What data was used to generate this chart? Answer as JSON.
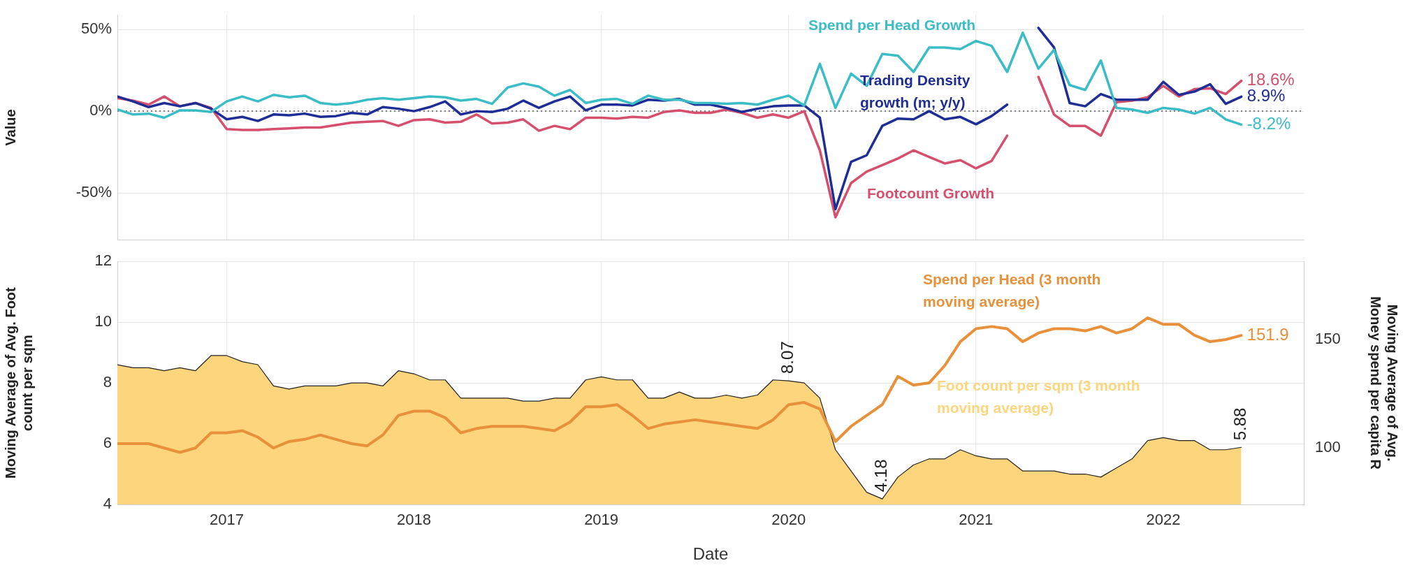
{
  "chart_data": [
    {
      "type": "line",
      "ylabel": "Value",
      "ylim": [
        -79,
        59
      ],
      "yticks": [
        {
          "value": 50,
          "label": "50%"
        },
        {
          "value": 0,
          "label": "0%"
        },
        {
          "value": -50,
          "label": "-50%"
        }
      ],
      "xlim": [
        "2016-06",
        "2022-10"
      ],
      "xticks": [
        "2017",
        "2018",
        "2019",
        "2020",
        "2021",
        "2022"
      ],
      "tick_labels": "y",
      "grid": true,
      "legend": false,
      "marker": "none",
      "line_style": "solid",
      "ref_lines": [
        {
          "axis": "y",
          "value": 0,
          "line_style": "dotted",
          "color": "#555555"
        }
      ],
      "x": [
        "2016-06",
        "2016-07",
        "2016-08",
        "2016-09",
        "2016-10",
        "2016-11",
        "2016-12",
        "2017-01",
        "2017-02",
        "2017-03",
        "2017-04",
        "2017-05",
        "2017-06",
        "2017-07",
        "2017-08",
        "2017-09",
        "2017-10",
        "2017-11",
        "2017-12",
        "2018-01",
        "2018-02",
        "2018-03",
        "2018-04",
        "2018-05",
        "2018-06",
        "2018-07",
        "2018-08",
        "2018-09",
        "2018-10",
        "2018-11",
        "2018-12",
        "2019-01",
        "2019-02",
        "2019-03",
        "2019-04",
        "2019-05",
        "2019-06",
        "2019-07",
        "2019-08",
        "2019-09",
        "2019-10",
        "2019-11",
        "2019-12",
        "2020-01",
        "2020-02",
        "2020-03",
        "2020-04",
        "2020-05",
        "2020-06",
        "2020-07",
        "2020-08",
        "2020-09",
        "2020-10",
        "2020-11",
        "2020-12",
        "2021-01",
        "2021-02",
        "2021-03",
        "2021-04",
        "2021-05",
        "2021-06",
        "2021-07",
        "2021-08",
        "2021-09",
        "2021-10",
        "2021-11",
        "2021-12",
        "2022-01",
        "2022-02",
        "2022-03",
        "2022-04",
        "2022-05",
        "2022-06"
      ],
      "series": [
        {
          "name": "Spend per Head Growth",
          "color": "#3bbdc8",
          "values": [
            1,
            -2,
            -1.5,
            -4,
            0.5,
            0.5,
            -0.5,
            6,
            9,
            6,
            10,
            8.5,
            9.5,
            5,
            4,
            5,
            7,
            8,
            7,
            8,
            9,
            8.5,
            6.5,
            7.5,
            4.5,
            14.5,
            17,
            15,
            9.5,
            13,
            5,
            7,
            7.5,
            4.5,
            9.5,
            7,
            7,
            5,
            5,
            4.5,
            5,
            4,
            7,
            9.5,
            3.5,
            29,
            2,
            23,
            15.5,
            35,
            34,
            24,
            39,
            39,
            38,
            43,
            40,
            24,
            48,
            26,
            37.5,
            16,
            13,
            31,
            2,
            1,
            -1,
            2,
            1,
            -1.5,
            2,
            -5,
            -8.2
          ],
          "value_labels": [
            null,
            null,
            null,
            null,
            null,
            null,
            null,
            null,
            null,
            null,
            null,
            null,
            null,
            null,
            null,
            null,
            null,
            null,
            null,
            null,
            null,
            null,
            null,
            null,
            null,
            null,
            null,
            null,
            null,
            null,
            null,
            null,
            null,
            null,
            null,
            null,
            null,
            null,
            null,
            null,
            null,
            null,
            null,
            null,
            null,
            null,
            null,
            null,
            null,
            null,
            null,
            null,
            null,
            null,
            null,
            null,
            null,
            null,
            null,
            null,
            null,
            null,
            null,
            null,
            null,
            null,
            null,
            null,
            null,
            null,
            null,
            null,
            "-8.2%"
          ]
        },
        {
          "name": "Trading Density growth (m; y/y)",
          "color": "#1f2d96",
          "values": [
            9,
            6,
            2.5,
            5,
            3,
            5,
            1.5,
            -5,
            -3.5,
            -6,
            -2,
            -2.5,
            -1.5,
            -3.5,
            -3,
            -1,
            -2,
            2.5,
            1.5,
            0,
            2.5,
            6,
            -2,
            0,
            -0.5,
            1.5,
            6.5,
            2,
            6,
            9,
            0.5,
            4,
            4,
            3.5,
            7,
            6.5,
            7.5,
            4,
            4,
            2,
            -0.5,
            1.5,
            3,
            3.5,
            3.5,
            -4,
            -60,
            -31,
            -27,
            -9,
            -4.5,
            -5,
            0,
            -5,
            -3.5,
            -8,
            -3,
            4,
            null,
            51,
            39,
            5,
            3,
            10.5,
            7,
            7,
            7,
            18,
            10,
            12,
            16.5,
            4.5,
            8.9
          ],
          "value_labels": [
            null,
            null,
            null,
            null,
            null,
            null,
            null,
            null,
            null,
            null,
            null,
            null,
            null,
            null,
            null,
            null,
            null,
            null,
            null,
            null,
            null,
            null,
            null,
            null,
            null,
            null,
            null,
            null,
            null,
            null,
            null,
            null,
            null,
            null,
            null,
            null,
            null,
            null,
            null,
            null,
            null,
            null,
            null,
            null,
            null,
            null,
            null,
            null,
            null,
            null,
            null,
            null,
            null,
            null,
            null,
            null,
            null,
            null,
            null,
            null,
            null,
            null,
            null,
            null,
            null,
            null,
            null,
            null,
            null,
            null,
            null,
            null,
            "8.9%"
          ]
        },
        {
          "name": "Footcount Growth",
          "color": "#d6506e",
          "values": [
            8,
            6.5,
            4,
            9,
            3,
            5,
            2,
            -11,
            -11.5,
            -11.5,
            -11,
            -10.5,
            -10,
            -10,
            -8.5,
            -7,
            -6.5,
            -6,
            -9,
            -5.5,
            -5,
            -7,
            -6.5,
            -2,
            -7.5,
            -7,
            -5,
            -12,
            -9,
            -11,
            -4,
            -4,
            -4.5,
            -3.5,
            -4,
            -0.5,
            0.5,
            -1,
            -1,
            1,
            -1,
            -4,
            -2,
            -4,
            0,
            -24,
            -65,
            -44,
            -37,
            -33,
            -29,
            -24,
            -28,
            -32,
            -30,
            -35,
            -30.5,
            -15,
            null,
            21,
            -2,
            -9,
            -9,
            -15,
            5.5,
            6.5,
            8.5,
            15.5,
            9,
            13.5,
            14,
            10.5,
            18.6
          ],
          "value_labels": [
            null,
            null,
            null,
            null,
            null,
            null,
            null,
            null,
            null,
            null,
            null,
            null,
            null,
            null,
            null,
            null,
            null,
            null,
            null,
            null,
            null,
            null,
            null,
            null,
            null,
            null,
            null,
            null,
            null,
            null,
            null,
            null,
            null,
            null,
            null,
            null,
            null,
            null,
            null,
            null,
            null,
            null,
            null,
            null,
            null,
            null,
            null,
            null,
            null,
            null,
            null,
            null,
            null,
            null,
            null,
            null,
            null,
            null,
            null,
            null,
            null,
            null,
            null,
            null,
            null,
            null,
            null,
            null,
            null,
            null,
            null,
            null,
            "18.6%"
          ]
        }
      ]
    },
    {
      "type": "area",
      "xlabel": "Date",
      "ylabel": "Moving Average of Avg. Foot count per sqm",
      "y2label": "Moving Average of Avg. Money spend per capita R",
      "ylim": [
        4,
        12
      ],
      "yticks": [
        4,
        6,
        8,
        10,
        12
      ],
      "y2lim": [
        74,
        186
      ],
      "y2ticks": [
        100,
        150
      ],
      "xlim": [
        "2016-06",
        "2022-10"
      ],
      "xticks": [
        "2017",
        "2018",
        "2019",
        "2020",
        "2021",
        "2022"
      ],
      "grid": true,
      "legend": false,
      "marker": "none",
      "x": [
        "2016-06",
        "2016-07",
        "2016-08",
        "2016-09",
        "2016-10",
        "2016-11",
        "2016-12",
        "2017-01",
        "2017-02",
        "2017-03",
        "2017-04",
        "2017-05",
        "2017-06",
        "2017-07",
        "2017-08",
        "2017-09",
        "2017-10",
        "2017-11",
        "2017-12",
        "2018-01",
        "2018-02",
        "2018-03",
        "2018-04",
        "2018-05",
        "2018-06",
        "2018-07",
        "2018-08",
        "2018-09",
        "2018-10",
        "2018-11",
        "2018-12",
        "2019-01",
        "2019-02",
        "2019-03",
        "2019-04",
        "2019-05",
        "2019-06",
        "2019-07",
        "2019-08",
        "2019-09",
        "2019-10",
        "2019-11",
        "2019-12",
        "2020-01",
        "2020-02",
        "2020-03",
        "2020-04",
        "2020-05",
        "2020-06",
        "2020-07",
        "2020-08",
        "2020-09",
        "2020-10",
        "2020-11",
        "2020-12",
        "2021-01",
        "2021-02",
        "2021-03",
        "2021-04",
        "2021-05",
        "2021-06",
        "2021-07",
        "2021-08",
        "2021-09",
        "2021-10",
        "2021-11",
        "2021-12",
        "2022-01",
        "2022-02",
        "2022-03",
        "2022-04",
        "2022-05",
        "2022-06"
      ],
      "series": [
        {
          "name": "Foot count per sqm (3 month moving average)",
          "color": "#fcd57c",
          "values": [
            8.6,
            8.5,
            8.5,
            8.4,
            8.5,
            8.4,
            8.9,
            8.9,
            8.7,
            8.6,
            7.9,
            7.8,
            7.9,
            7.9,
            7.9,
            8.0,
            8.0,
            7.9,
            8.4,
            8.3,
            8.1,
            8.1,
            7.5,
            7.5,
            7.5,
            7.5,
            7.4,
            7.4,
            7.5,
            7.5,
            8.1,
            8.2,
            8.1,
            8.1,
            7.5,
            7.5,
            7.7,
            7.5,
            7.5,
            7.6,
            7.5,
            7.6,
            8.1,
            8.07,
            8.0,
            7.5,
            5.8,
            5.1,
            4.4,
            4.18,
            4.9,
            5.3,
            5.5,
            5.5,
            5.8,
            5.6,
            5.5,
            5.5,
            5.1,
            5.1,
            5.1,
            5.0,
            5.0,
            4.9,
            5.2,
            5.5,
            6.1,
            6.2,
            6.1,
            6.1,
            5.8,
            5.8,
            5.88
          ],
          "value_labels": [
            null,
            null,
            null,
            null,
            null,
            null,
            null,
            null,
            null,
            null,
            null,
            null,
            null,
            null,
            null,
            null,
            null,
            null,
            null,
            null,
            null,
            null,
            null,
            null,
            null,
            null,
            null,
            null,
            null,
            null,
            null,
            null,
            null,
            null,
            null,
            null,
            null,
            null,
            null,
            null,
            null,
            null,
            null,
            "8.07",
            null,
            null,
            null,
            null,
            null,
            "4.18",
            null,
            null,
            null,
            null,
            null,
            null,
            null,
            null,
            null,
            null,
            null,
            null,
            null,
            null,
            null,
            null,
            null,
            null,
            null,
            null,
            null,
            null,
            "5.88"
          ]
        },
        {
          "name": "Spend per Head (3 month moving average)",
          "type": "line",
          "axis": "y2",
          "color": "#e8913a",
          "values": [
            102,
            102,
            102,
            100,
            98,
            100,
            107,
            107,
            108,
            105,
            100,
            103,
            104,
            106,
            104,
            102,
            101,
            106,
            115,
            117,
            117,
            114,
            107,
            109,
            110,
            110,
            110,
            109,
            108,
            112,
            119,
            119,
            120,
            115,
            109,
            111,
            112,
            113,
            112,
            111,
            110,
            109,
            113,
            120,
            121,
            118,
            103,
            110,
            115,
            120,
            133,
            129,
            130,
            138,
            149,
            155,
            156,
            155,
            149,
            153,
            155,
            155,
            154,
            156,
            153,
            155,
            160,
            157,
            157,
            152,
            149,
            150,
            151.9
          ],
          "value_labels": [
            null,
            null,
            null,
            null,
            null,
            null,
            null,
            null,
            null,
            null,
            null,
            null,
            null,
            null,
            null,
            null,
            null,
            null,
            null,
            null,
            null,
            null,
            null,
            null,
            null,
            null,
            null,
            null,
            null,
            null,
            null,
            null,
            null,
            null,
            null,
            null,
            null,
            null,
            null,
            null,
            null,
            null,
            null,
            null,
            null,
            null,
            null,
            null,
            null,
            null,
            null,
            null,
            null,
            null,
            null,
            null,
            null,
            null,
            null,
            null,
            null,
            null,
            null,
            null,
            null,
            null,
            null,
            null,
            null,
            null,
            null,
            null,
            "151.9"
          ]
        }
      ]
    }
  ]
}
